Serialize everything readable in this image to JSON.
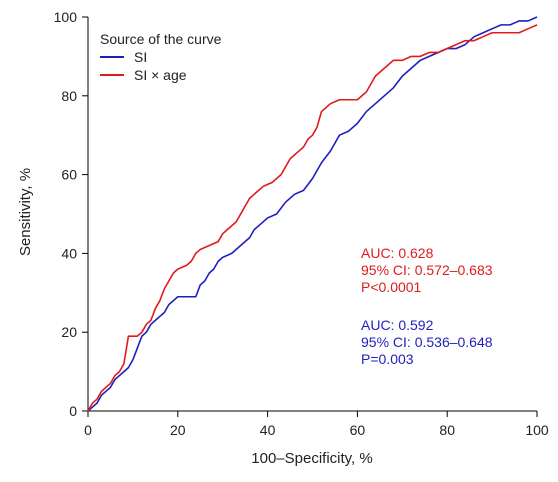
{
  "chart_data": {
    "type": "line",
    "title": "",
    "xlabel": "100–Specificity, %",
    "ylabel": "Sensitivity, %",
    "xlim": [
      0,
      100
    ],
    "ylim": [
      0,
      100
    ],
    "x_ticks": [
      "0",
      "20",
      "40",
      "60",
      "80",
      "100"
    ],
    "y_ticks": [
      "0",
      "20",
      "40",
      "60",
      "80",
      "100"
    ],
    "grid": false,
    "legend": {
      "title": "Source of the curve",
      "placement": "top-left",
      "entries": [
        {
          "label": "SI",
          "color": "#1f1fbf"
        },
        {
          "label": "SI × age",
          "color": "#e01b1b"
        }
      ]
    },
    "series": [
      {
        "name": "SI",
        "color": "#1f1fbf",
        "points": [
          [
            0,
            0
          ],
          [
            1,
            1
          ],
          [
            2,
            2
          ],
          [
            3,
            4
          ],
          [
            4,
            5
          ],
          [
            5,
            6
          ],
          [
            6,
            8
          ],
          [
            7,
            9
          ],
          [
            8,
            10
          ],
          [
            9,
            11
          ],
          [
            10,
            13
          ],
          [
            11,
            16
          ],
          [
            12,
            19
          ],
          [
            13,
            20
          ],
          [
            14,
            22
          ],
          [
            15,
            23
          ],
          [
            16,
            24
          ],
          [
            17,
            25
          ],
          [
            18,
            27
          ],
          [
            19,
            28
          ],
          [
            20,
            29
          ],
          [
            22,
            29
          ],
          [
            24,
            29
          ],
          [
            25,
            32
          ],
          [
            26,
            33
          ],
          [
            27,
            35
          ],
          [
            28,
            36
          ],
          [
            29,
            38
          ],
          [
            30,
            39
          ],
          [
            32,
            40
          ],
          [
            34,
            42
          ],
          [
            36,
            44
          ],
          [
            37,
            46
          ],
          [
            38,
            47
          ],
          [
            40,
            49
          ],
          [
            42,
            50
          ],
          [
            44,
            53
          ],
          [
            46,
            55
          ],
          [
            48,
            56
          ],
          [
            50,
            59
          ],
          [
            52,
            63
          ],
          [
            54,
            66
          ],
          [
            56,
            70
          ],
          [
            58,
            71
          ],
          [
            60,
            73
          ],
          [
            62,
            76
          ],
          [
            64,
            78
          ],
          [
            66,
            80
          ],
          [
            68,
            82
          ],
          [
            70,
            85
          ],
          [
            72,
            87
          ],
          [
            74,
            89
          ],
          [
            76,
            90
          ],
          [
            78,
            91
          ],
          [
            80,
            92
          ],
          [
            82,
            92
          ],
          [
            84,
            93
          ],
          [
            86,
            95
          ],
          [
            88,
            96
          ],
          [
            90,
            97
          ],
          [
            92,
            98
          ],
          [
            94,
            98
          ],
          [
            96,
            99
          ],
          [
            98,
            99
          ],
          [
            100,
            100
          ]
        ]
      },
      {
        "name": "SI × age",
        "color": "#e01b1b",
        "points": [
          [
            0,
            0
          ],
          [
            0.5,
            1
          ],
          [
            1,
            2
          ],
          [
            2,
            3
          ],
          [
            3,
            5
          ],
          [
            4,
            6
          ],
          [
            5,
            7
          ],
          [
            6,
            9
          ],
          [
            7,
            10
          ],
          [
            8,
            12
          ],
          [
            9,
            19
          ],
          [
            11,
            19
          ],
          [
            12,
            20
          ],
          [
            13,
            22
          ],
          [
            14,
            23
          ],
          [
            15,
            26
          ],
          [
            16,
            28
          ],
          [
            17,
            31
          ],
          [
            18,
            33
          ],
          [
            19,
            35
          ],
          [
            20,
            36
          ],
          [
            22,
            37
          ],
          [
            23,
            38
          ],
          [
            24,
            40
          ],
          [
            25,
            41
          ],
          [
            27,
            42
          ],
          [
            29,
            43
          ],
          [
            30,
            45
          ],
          [
            31,
            46
          ],
          [
            33,
            48
          ],
          [
            34,
            50
          ],
          [
            35,
            52
          ],
          [
            36,
            54
          ],
          [
            37,
            55
          ],
          [
            38,
            56
          ],
          [
            39,
            57
          ],
          [
            41,
            58
          ],
          [
            43,
            60
          ],
          [
            44,
            62
          ],
          [
            45,
            64
          ],
          [
            46,
            65
          ],
          [
            47,
            66
          ],
          [
            48,
            67
          ],
          [
            49,
            69
          ],
          [
            50,
            70
          ],
          [
            51,
            72
          ],
          [
            52,
            76
          ],
          [
            54,
            78
          ],
          [
            56,
            79
          ],
          [
            60,
            79
          ],
          [
            62,
            81
          ],
          [
            64,
            85
          ],
          [
            66,
            87
          ],
          [
            68,
            89
          ],
          [
            70,
            89
          ],
          [
            72,
            90
          ],
          [
            74,
            90
          ],
          [
            76,
            91
          ],
          [
            78,
            91
          ],
          [
            80,
            92
          ],
          [
            82,
            93
          ],
          [
            84,
            94
          ],
          [
            86,
            94
          ],
          [
            88,
            95
          ],
          [
            90,
            96
          ],
          [
            92,
            96
          ],
          [
            94,
            96
          ],
          [
            96,
            96
          ],
          [
            98,
            97
          ],
          [
            100,
            98
          ]
        ]
      }
    ],
    "annotations": [
      {
        "color": "#e01b1b",
        "lines": [
          "AUC: 0.628",
          "95% CI: 0.572–0.683",
          "P<0.0001"
        ]
      },
      {
        "color": "#1f1fbf",
        "lines": [
          "AUC: 0.592",
          "95% CI: 0.536–0.648",
          "P=0.003"
        ]
      }
    ]
  }
}
